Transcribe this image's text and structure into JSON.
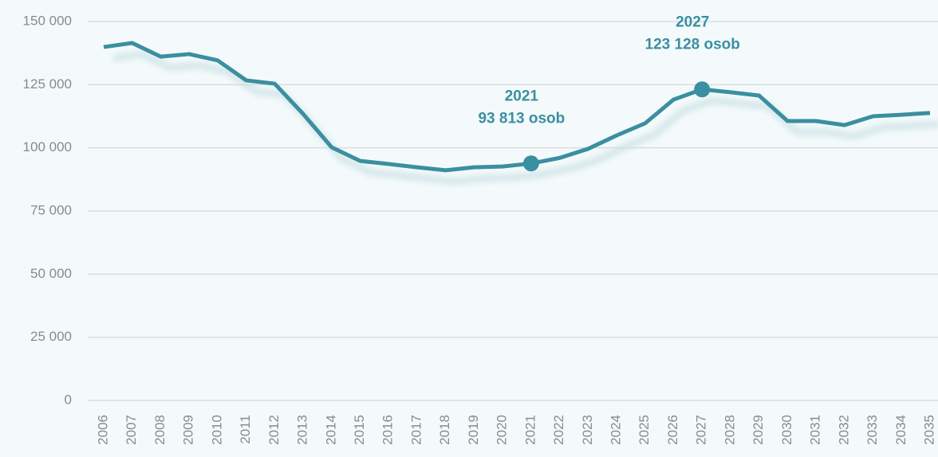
{
  "chart_data": {
    "type": "line",
    "categories": [
      "2006",
      "2007",
      "2008",
      "2009",
      "2010",
      "2011",
      "2012",
      "2013",
      "2014",
      "2015",
      "2016",
      "2017",
      "2018",
      "2019",
      "2020",
      "2021",
      "2022",
      "2023",
      "2024",
      "2025",
      "2026",
      "2027",
      "2028",
      "2029",
      "2030",
      "2031",
      "2032",
      "2033",
      "2034",
      "2035"
    ],
    "series": [
      {
        "color": "#3a8fa0",
        "values": [
          139900,
          141500,
          136100,
          137100,
          134600,
          126700,
          125400,
          113400,
          100200,
          94800,
          93600,
          92300,
          91100,
          92300,
          92600,
          93813,
          96000,
          99600,
          104900,
          109700,
          119100,
          123128,
          122000,
          120700,
          110600,
          110600,
          109000,
          112500,
          113100,
          113800
        ]
      }
    ],
    "ylim": [
      0,
      150000
    ],
    "yticks": [
      {
        "value": 0,
        "label": "0"
      },
      {
        "value": 25000,
        "label": "25 000"
      },
      {
        "value": 50000,
        "label": "50 000"
      },
      {
        "value": 75000,
        "label": "75 000"
      },
      {
        "value": 100000,
        "label": "100 000"
      },
      {
        "value": 125000,
        "label": "125 000"
      },
      {
        "value": 150000,
        "label": "150 000"
      }
    ],
    "grid": true,
    "annotations": [
      {
        "x": "2021",
        "label": "93 813 osob"
      },
      {
        "x": "2027",
        "label": "123 128 osob"
      }
    ]
  }
}
